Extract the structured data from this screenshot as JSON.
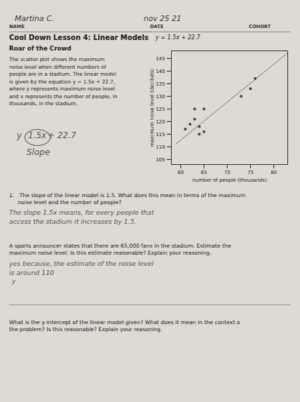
{
  "chart_data": {
    "type": "scatter",
    "title": "Cool Down Lesson 4: Linear Models",
    "x": [
      61,
      62,
      63,
      63,
      64,
      64,
      65,
      65,
      73,
      75,
      76
    ],
    "values": [
      117,
      119,
      121,
      125,
      118,
      115,
      125,
      116,
      130,
      133,
      137
    ],
    "color": "#444444",
    "fit_line": {
      "type": "line",
      "x": [
        59,
        83
      ],
      "values": [
        111.2,
        147.2
      ],
      "color": "#777777"
    },
    "xlabel": "number of people (thousands)",
    "ylabel": "maximum noise level (decibels)",
    "xlim": [
      58,
      83
    ],
    "ylim": [
      103,
      148
    ],
    "xticks": [
      60,
      65,
      70,
      75,
      80
    ],
    "yticks": [
      105,
      110,
      115,
      120,
      125,
      130,
      135,
      140,
      145
    ],
    "grid": false,
    "annotations": [
      "Martina C.",
      "nov 25 21",
      "NAME",
      "DATE",
      "COHORT",
      "Roar of the Crowd",
      "The scatter plot shows the maximum\nnoise level when different numbers of\npeople are in a stadium. The linear model\nis given by the equation y = 1.5x + 22.7,\nwhere y represents maximum noise level\nand x represents the number of people, in\nthousands, in the stadium.",
      "y = 1.5x + 22.7",
      "y",
      "1.5x",
      "+ 22.7",
      "Slope",
      "1.   The slope of the linear model is 1.5. What does this mean in terms of the maximum\n     noise level and the number of people?",
      "The slope 1.5x means, for every people that",
      "access the stadium it increases by 1.5.",
      "A sports announcer states that there are 65,000 fans in the stadium. Estimate the\nmaximum noise level. Is this estimate reasonable? Explain your reasoning.",
      "yes because, the estimate of the noise level",
      "is around 110",
      "y",
      "What is the y-intercept of the linear model given? What does it mean in the context o\nthe problem? Is this reasonable? Explain your reasoning."
    ]
  }
}
